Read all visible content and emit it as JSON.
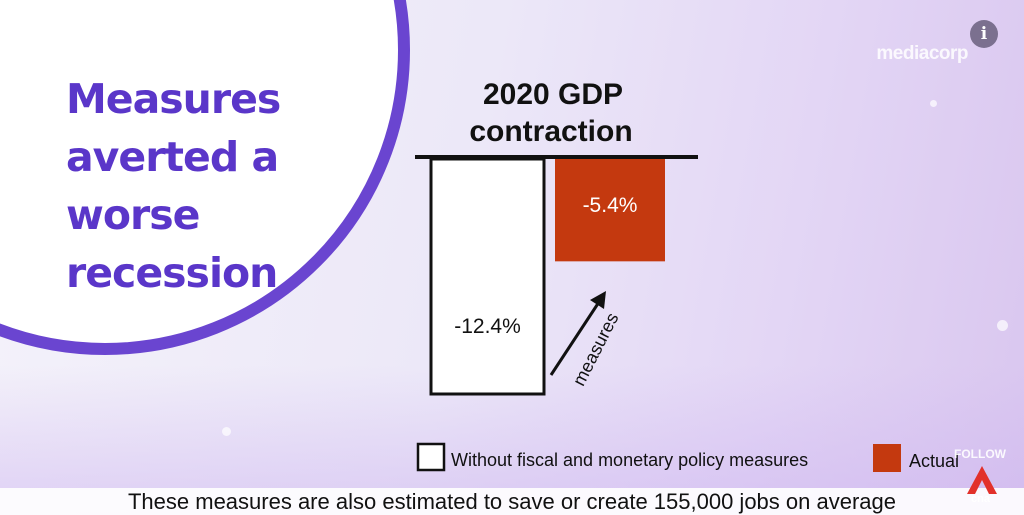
{
  "headline": [
    "Measures",
    "averted a",
    "worse",
    "recession"
  ],
  "brand": "mediacorp",
  "info_button": "i",
  "follow_label": "FOLLOW",
  "channel_label": "cna",
  "subtitle": "These measures are also estimated to save or create 155,000 jobs on average",
  "icons": {
    "info": "info-icon",
    "channel_logo": "cna-logo-icon",
    "arrow": "up-right-arrow-icon"
  },
  "chart_data": {
    "type": "bar",
    "title": [
      "2020 GDP",
      "contraction"
    ],
    "categories": [
      "Without fiscal and monetary policy measures",
      "Actual"
    ],
    "values": [
      -12.4,
      -5.4
    ],
    "data_labels": [
      "-12.4%",
      "-5.4%"
    ],
    "annotation": "measures",
    "ylim": [
      -12.4,
      0
    ],
    "grid": false,
    "legend_position": "bottom",
    "colors": {
      "without": "#ffffff",
      "actual": "#c4390f",
      "outline": "#111111"
    },
    "legend": [
      {
        "label": "Without fiscal and monetary policy measures",
        "style": "outline"
      },
      {
        "label": "Actual",
        "style": "filled"
      }
    ]
  }
}
